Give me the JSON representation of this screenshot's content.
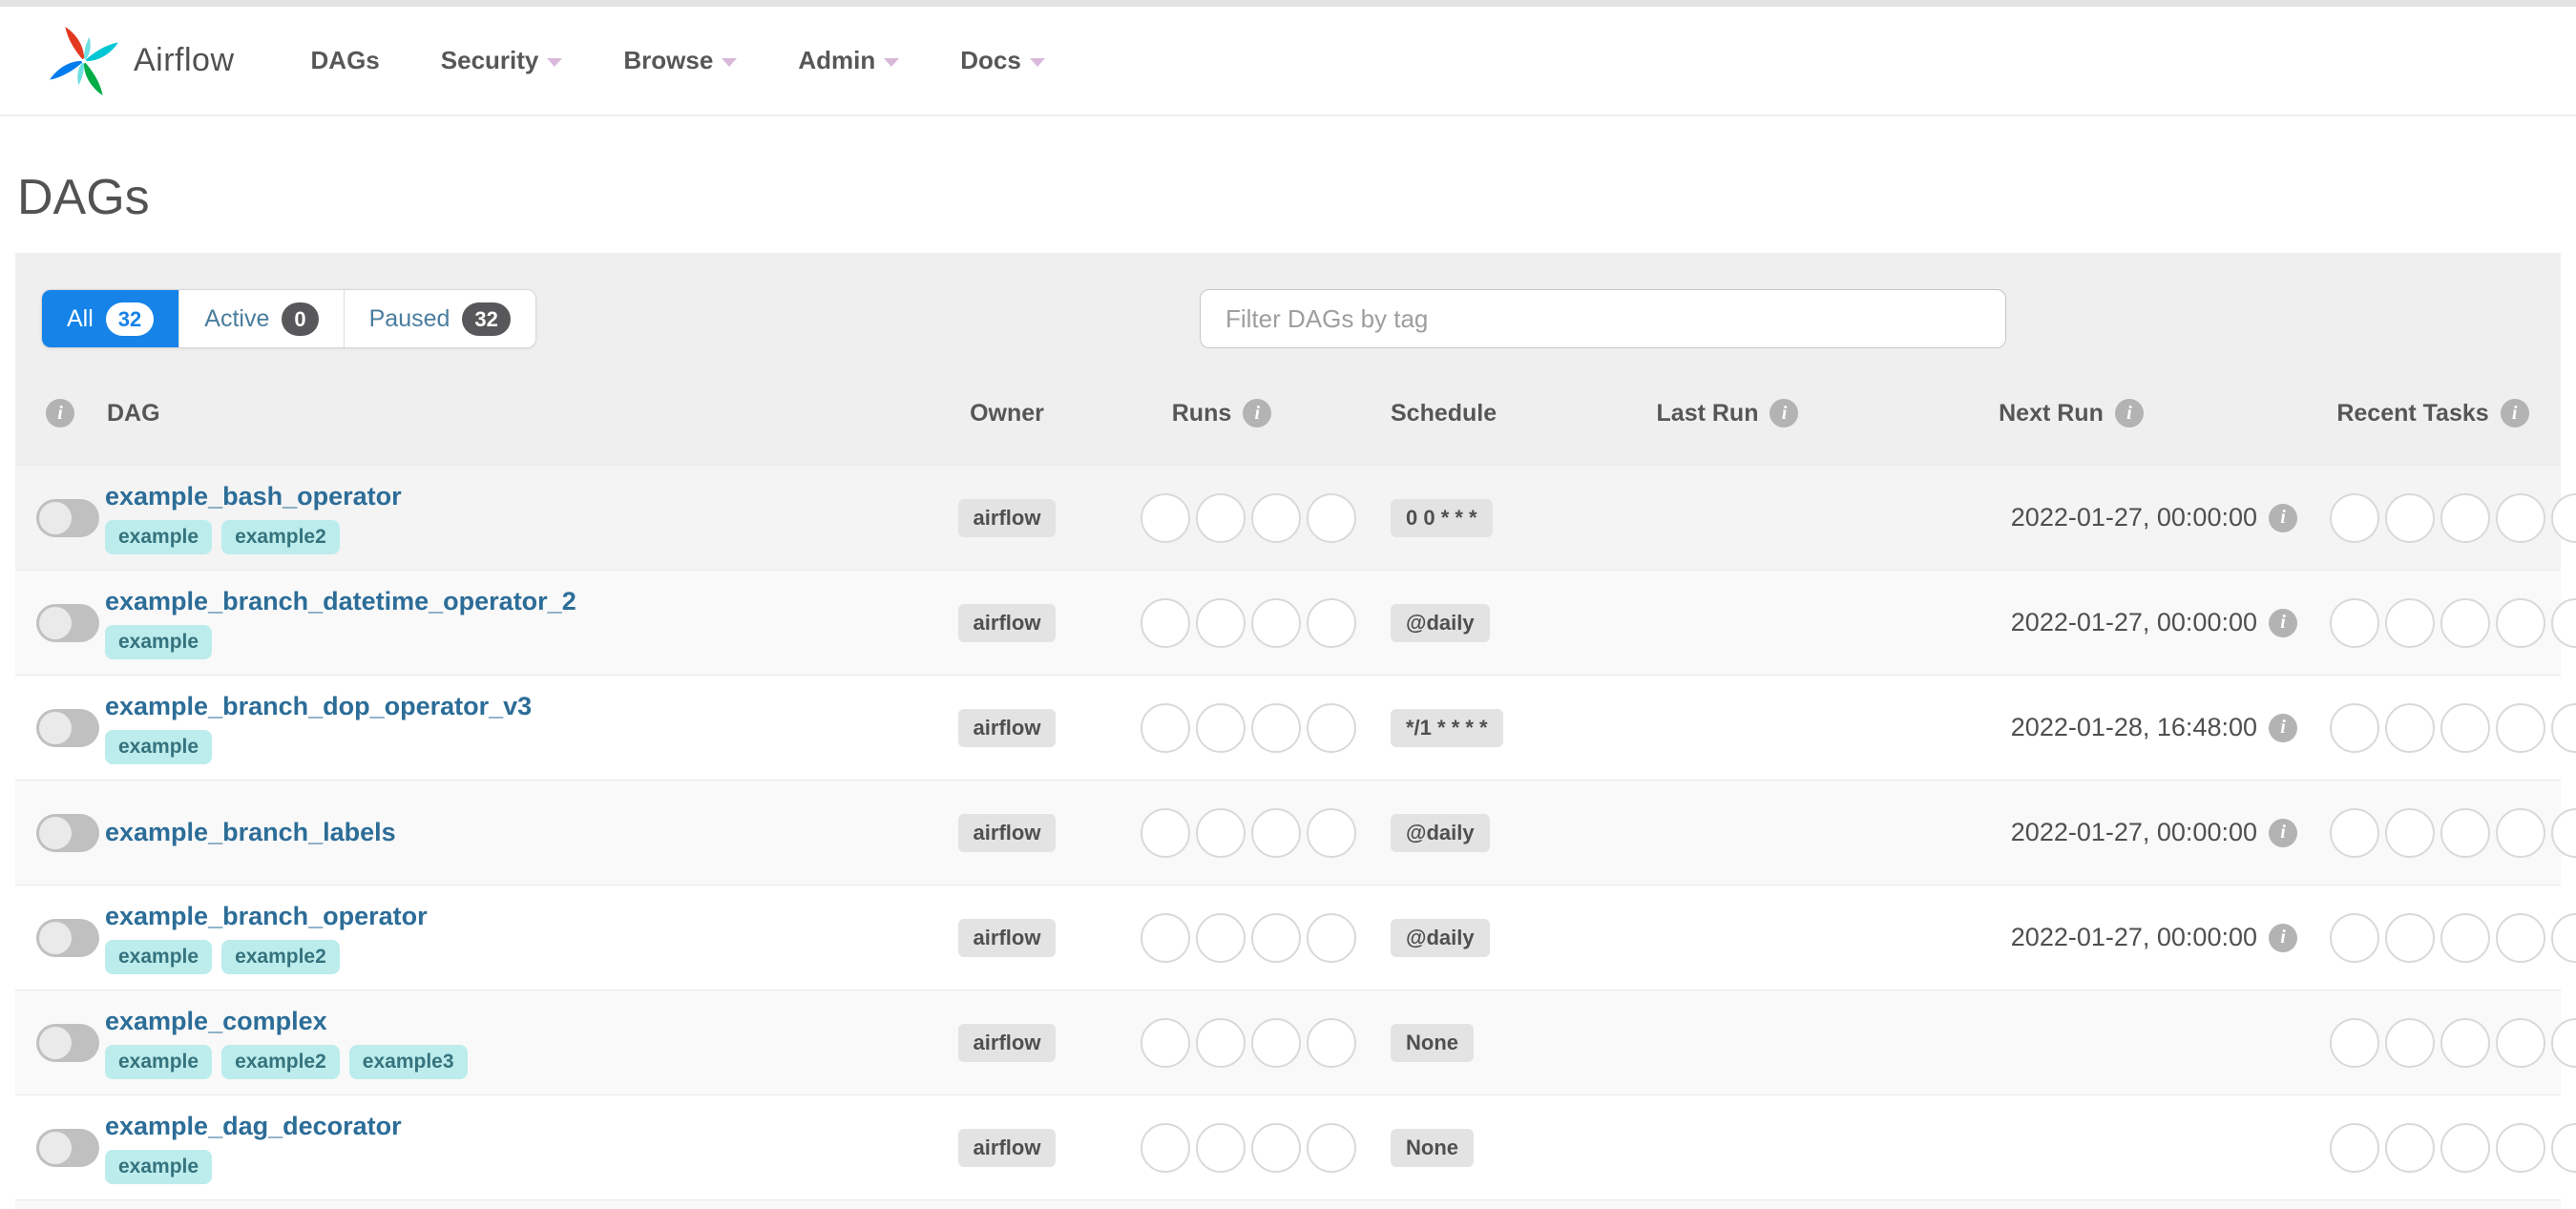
{
  "navbar": {
    "brand": "Airflow",
    "items": [
      {
        "label": "DAGs",
        "has_caret": false
      },
      {
        "label": "Security",
        "has_caret": true
      },
      {
        "label": "Browse",
        "has_caret": true
      },
      {
        "label": "Admin",
        "has_caret": true
      },
      {
        "label": "Docs",
        "has_caret": true
      }
    ]
  },
  "page_title": "DAGs",
  "filter_tabs": [
    {
      "label": "All",
      "count": "32",
      "active": true
    },
    {
      "label": "Active",
      "count": "0",
      "active": false
    },
    {
      "label": "Paused",
      "count": "32",
      "active": false
    }
  ],
  "tag_filter": {
    "placeholder": "Filter DAGs by tag"
  },
  "icons": {
    "info": "i"
  },
  "colors": {
    "active_tab_blue": "#1583e8",
    "dag_link_blue": "#2c6d98",
    "tag_badge_bg": "#bdecec",
    "tag_badge_text": "#35737e",
    "gray_badge_bg": "#e3e3e3",
    "toggle_off_gray": "#c0c0c0",
    "logo_red": "#E43921",
    "logo_cyan": "#00C7D4",
    "logo_green": "#00AD46",
    "logo_blue": "#017CEE"
  },
  "table": {
    "headers": {
      "dag": "DAG",
      "owner": "Owner",
      "runs": "Runs",
      "schedule": "Schedule",
      "last_run": "Last Run",
      "next_run": "Next Run",
      "recent_tasks": "Recent Tasks"
    },
    "runs_slots": 4,
    "recent_slots": 5,
    "rows": [
      {
        "name": "example_bash_operator",
        "tags": [
          "example",
          "example2"
        ],
        "owner": "airflow",
        "enabled": false,
        "schedule": "0 0 * * *",
        "last_run": "",
        "next_run": "2022-01-27, 00:00:00"
      },
      {
        "name": "example_branch_datetime_operator_2",
        "tags": [
          "example"
        ],
        "owner": "airflow",
        "enabled": false,
        "schedule": "@daily",
        "last_run": "",
        "next_run": "2022-01-27, 00:00:00"
      },
      {
        "name": "example_branch_dop_operator_v3",
        "tags": [
          "example"
        ],
        "owner": "airflow",
        "enabled": false,
        "schedule": "*/1 * * * *",
        "last_run": "",
        "next_run": "2022-01-28, 16:48:00"
      },
      {
        "name": "example_branch_labels",
        "tags": [],
        "owner": "airflow",
        "enabled": false,
        "schedule": "@daily",
        "last_run": "",
        "next_run": "2022-01-27, 00:00:00"
      },
      {
        "name": "example_branch_operator",
        "tags": [
          "example",
          "example2"
        ],
        "owner": "airflow",
        "enabled": false,
        "schedule": "@daily",
        "last_run": "",
        "next_run": "2022-01-27, 00:00:00"
      },
      {
        "name": "example_complex",
        "tags": [
          "example",
          "example2",
          "example3"
        ],
        "owner": "airflow",
        "enabled": false,
        "schedule": "None",
        "last_run": "",
        "next_run": ""
      },
      {
        "name": "example_dag_decorator",
        "tags": [
          "example"
        ],
        "owner": "airflow",
        "enabled": false,
        "schedule": "None",
        "last_run": "",
        "next_run": ""
      }
    ]
  }
}
